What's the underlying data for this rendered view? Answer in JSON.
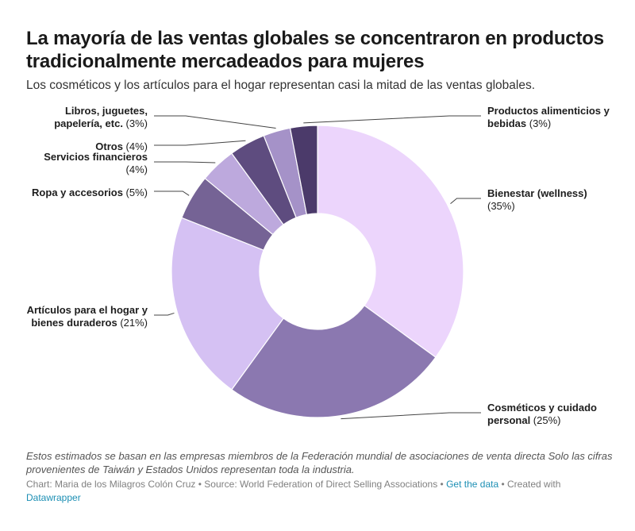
{
  "header": {
    "title": "La mayoría de las ventas globales se concentraron en productos tradicionalmente mercadeados para mujeres",
    "subtitle": "Los cosméticos y los artículos para el hogar representan casi la mitad de las ventas globales."
  },
  "chart_data": {
    "type": "pie",
    "variant": "donut",
    "slices": [
      {
        "label_lines": [
          "Bienestar (wellness)",
          "(35%)"
        ],
        "value": 35,
        "color": "#ecd5fc"
      },
      {
        "label_lines": [
          "Cosméticos y cuidado",
          "personal (25%)"
        ],
        "value": 25,
        "color": "#8b78b0"
      },
      {
        "label_lines": [
          "Artículos para el hogar y",
          "bienes duraderos (21%)"
        ],
        "value": 21,
        "color": "#d5c1f3"
      },
      {
        "label_lines": [
          "Ropa y accesorios (5%)"
        ],
        "value": 5,
        "color": "#756395"
      },
      {
        "label_lines": [
          "Servicios financieros",
          "(4%)"
        ],
        "value": 4,
        "color": "#bda9dd"
      },
      {
        "label_lines": [
          "Otros (4%)"
        ],
        "value": 4,
        "color": "#5e4c7f"
      },
      {
        "label_lines": [
          "Libros, juguetes,",
          "papelería, etc. (3%)"
        ],
        "value": 3,
        "color": "#a592c8"
      },
      {
        "label_lines": [
          "Productos alimenticios y",
          "bebidas (3%)"
        ],
        "value": 3,
        "color": "#4b3a6a"
      }
    ]
  },
  "footer": {
    "notes": "Estos estimados se basan en las empresas miembros de la Federación mundial de asociaciones de venta directa Solo las cifras provenientes de Taiwán y Estados Unidos representan toda la industria.",
    "chart_credit": "Chart: Maria de los Milagros Colón Cruz",
    "source": "Source: World Federation of Direct Selling Associations",
    "get_data": "Get the data",
    "created_with": "Created with",
    "tool": "Datawrapper"
  }
}
